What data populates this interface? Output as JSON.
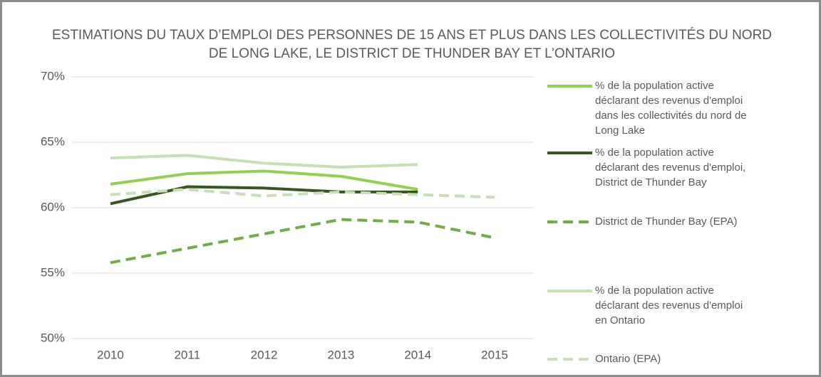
{
  "chart_data": {
    "type": "line",
    "title": "ESTIMATIONS DU TAUX D’EMPLOI DES PERSONNES DE 15 ANS ET PLUS DANS LES COLLECTIVITÉS DU NORD DE LONG LAKE, LE DISTRICT DE THUNDER BAY ET L’ONTARIO",
    "categories": [
      "2010",
      "2011",
      "2012",
      "2013",
      "2014",
      "2015"
    ],
    "series": [
      {
        "name": "% de la population active déclarant des revenus d'emploi dans les collectivités du nord de Long Lake",
        "color": "#92d050",
        "dashed": false,
        "values": [
          61.8,
          62.6,
          62.8,
          62.4,
          61.4,
          null
        ]
      },
      {
        "name": "% de la population active déclarant des revenus d'emploi, District de Thunder Bay",
        "color": "#375623",
        "dashed": false,
        "values": [
          60.3,
          61.6,
          61.5,
          61.2,
          61.2,
          null
        ]
      },
      {
        "name": "District de Thunder Bay (EPA)",
        "color": "#70ad47",
        "dashed": true,
        "values": [
          55.8,
          56.9,
          58.0,
          59.1,
          58.9,
          57.7
        ]
      },
      {
        "name": "% de la population active déclarant des revenus d'emploi en Ontario",
        "color": "#c5e0b4",
        "dashed": false,
        "values": [
          63.8,
          64.0,
          63.4,
          63.1,
          63.3,
          null
        ]
      },
      {
        "name": "Ontario (EPA)",
        "color": "#c5e0b4",
        "dashed": true,
        "values": [
          61.0,
          61.4,
          60.9,
          61.2,
          61.0,
          60.8
        ]
      }
    ],
    "ylim": [
      50,
      70
    ],
    "yticks": [
      {
        "value": 50,
        "label": "50%"
      },
      {
        "value": 55,
        "label": "55%"
      },
      {
        "value": 60,
        "label": "60%"
      },
      {
        "value": 65,
        "label": "65%"
      },
      {
        "value": 70,
        "label": "70%"
      }
    ],
    "grid": true,
    "legend": "right"
  }
}
